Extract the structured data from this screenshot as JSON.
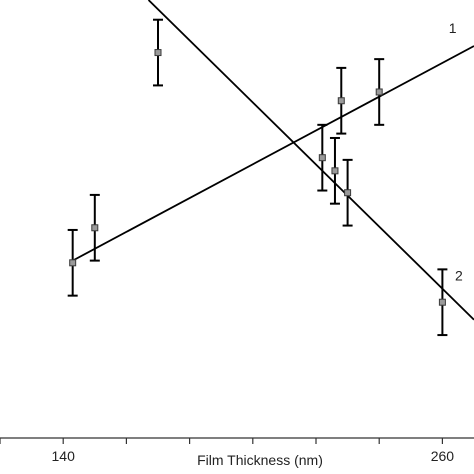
{
  "chart_data": {
    "type": "scatter",
    "title": "",
    "xlabel": "Film Thickness (nm)",
    "ylabel": "",
    "xlim": [
      120,
      270
    ],
    "ylim": [
      0,
      1
    ],
    "x_tick_labels": [
      {
        "value": 140,
        "label": "140"
      },
      {
        "value": 260,
        "label": "260"
      }
    ],
    "x_minor_ticks": [
      120,
      140,
      160,
      180,
      200,
      220,
      240,
      260
    ],
    "series": [
      {
        "name": "1",
        "points": [
          {
            "x": 143,
            "y": 0.4,
            "err": 0.075
          },
          {
            "x": 150,
            "y": 0.48,
            "err": 0.075
          },
          {
            "x": 222,
            "y": 0.64,
            "err": 0.075
          },
          {
            "x": 228,
            "y": 0.77,
            "err": 0.075
          },
          {
            "x": 240,
            "y": 0.79,
            "err": 0.075
          }
        ],
        "fit": {
          "x": [
            143,
            270
          ],
          "y": [
            0.405,
            0.895
          ]
        }
      },
      {
        "name": "2",
        "points": [
          {
            "x": 170,
            "y": 0.88,
            "err": 0.075
          },
          {
            "x": 226,
            "y": 0.61,
            "err": 0.075
          },
          {
            "x": 230,
            "y": 0.56,
            "err": 0.075
          },
          {
            "x": 260,
            "y": 0.31,
            "err": 0.075
          }
        ],
        "fit": {
          "x": [
            167,
            270
          ],
          "y": [
            1.0,
            0.27
          ]
        }
      }
    ]
  }
}
